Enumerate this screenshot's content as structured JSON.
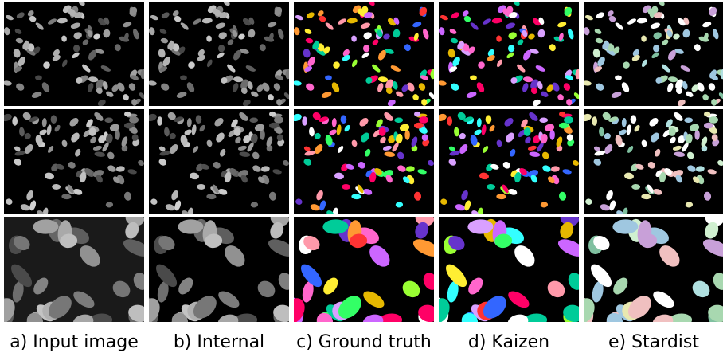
{
  "figure": {
    "captions": [
      "a) Input image",
      "b) Internal",
      "c) Ground truth",
      "d) Kaizen",
      "e) Stardist"
    ]
  }
}
